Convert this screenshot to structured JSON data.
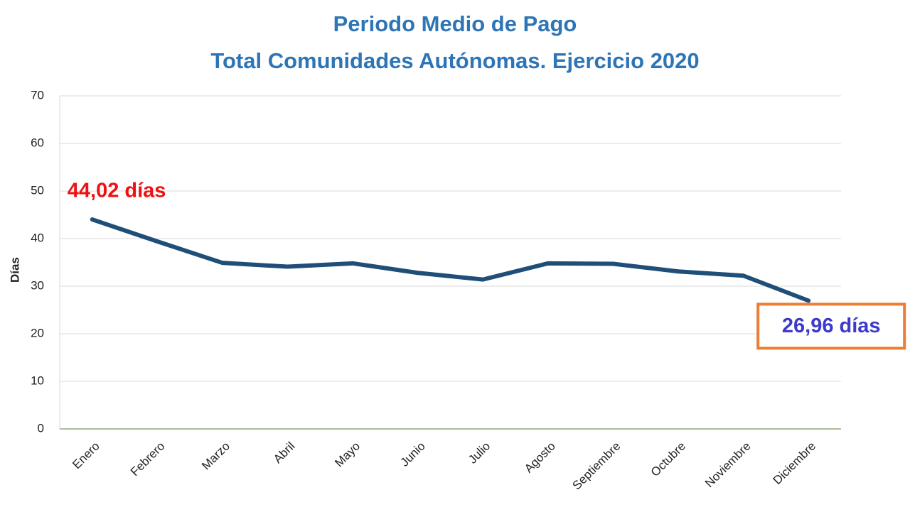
{
  "chart_data": {
    "type": "line",
    "title": "Periodo Medio de Pago",
    "subtitle": "Total Comunidades Autónomas. Ejercicio 2020",
    "y_label": "Días",
    "categories": [
      "Enero",
      "Febrero",
      "Marzo",
      "Abril",
      "Mayo",
      "Junio",
      "Julio",
      "Agosto",
      "Septiembre",
      "Octubre",
      "Noviembre",
      "Diciembre"
    ],
    "values": [
      44.02,
      39.4,
      34.9,
      34.1,
      34.8,
      32.8,
      31.4,
      34.8,
      34.7,
      33.1,
      32.2,
      26.96
    ],
    "value_labels": [
      "44,02 días",
      null,
      null,
      null,
      null,
      null,
      null,
      null,
      null,
      null,
      null,
      "26,96 días"
    ],
    "color": "#1f4e79",
    "ylim": [
      0,
      70
    ],
    "yticks": [
      0,
      10,
      20,
      30,
      40,
      50,
      60,
      70
    ],
    "grid": true
  }
}
